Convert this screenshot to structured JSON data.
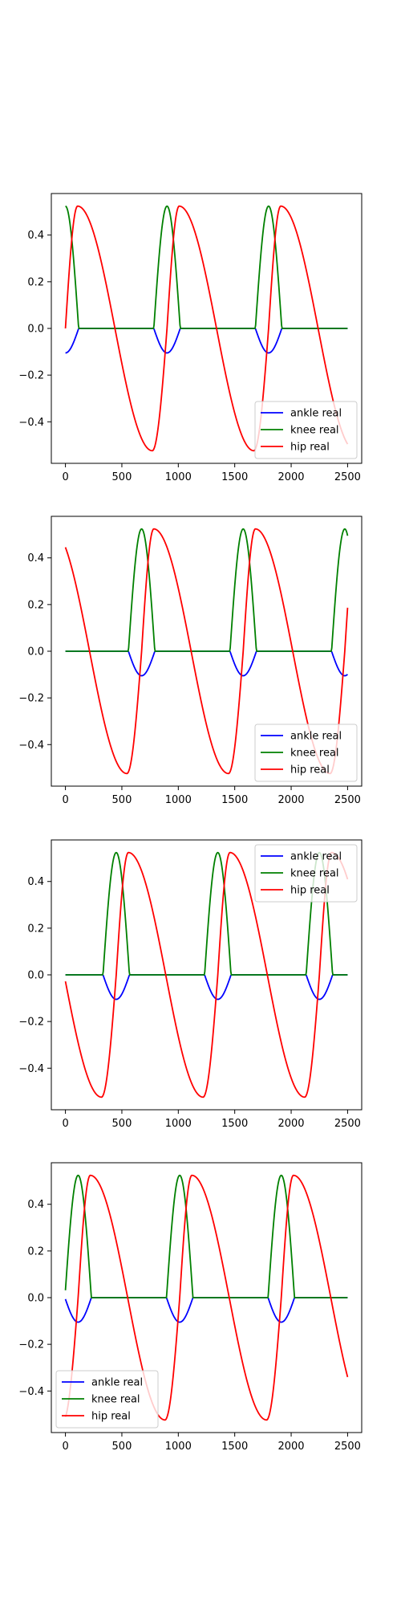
{
  "colors": {
    "ankle": "#0000ff",
    "knee": "#008000",
    "hip": "#ff0000",
    "axes": "#000000",
    "background": "#ffffff"
  },
  "chart_data": [
    {
      "type": "line",
      "x_domain": [
        0,
        2500
      ],
      "xlim": [
        -125,
        2625
      ],
      "ylim": [
        -0.578,
        0.578
      ],
      "x_ticks": [
        0,
        500,
        1000,
        1500,
        2000,
        2500
      ],
      "y_ticks": [
        0.4,
        0.2,
        0.0,
        -0.2,
        -0.4
      ],
      "y_tick_labels": [
        "0.4",
        "0.2",
        "0.0",
        "−0.2",
        "−0.4"
      ],
      "legend_position": "lower right",
      "series": [
        {
          "name": "ankle real",
          "color": "#0000ff",
          "pattern": "ankle",
          "phase": 0.0
        },
        {
          "name": "knee real",
          "color": "#008000",
          "pattern": "knee",
          "phase": 0.0
        },
        {
          "name": "hip real",
          "color": "#ff0000",
          "pattern": "hip",
          "phase": 0.0
        }
      ]
    },
    {
      "type": "line",
      "x_domain": [
        0,
        2500
      ],
      "xlim": [
        -125,
        2625
      ],
      "ylim": [
        -0.578,
        0.578
      ],
      "x_ticks": [
        0,
        500,
        1000,
        1500,
        2000,
        2500
      ],
      "y_ticks": [
        0.4,
        0.2,
        0.0,
        -0.2,
        -0.4
      ],
      "y_tick_labels": [
        "0.4",
        "0.2",
        "0.0",
        "−0.2",
        "−0.4"
      ],
      "legend_position": "lower right",
      "series": [
        {
          "name": "ankle real",
          "color": "#0000ff",
          "pattern": "ankle",
          "phase": 0.25
        },
        {
          "name": "knee real",
          "color": "#008000",
          "pattern": "knee",
          "phase": 0.25
        },
        {
          "name": "hip real",
          "color": "#ff0000",
          "pattern": "hip",
          "phase": 0.25
        }
      ]
    },
    {
      "type": "line",
      "x_domain": [
        0,
        2500
      ],
      "xlim": [
        -125,
        2625
      ],
      "ylim": [
        -0.578,
        0.578
      ],
      "x_ticks": [
        0,
        500,
        1000,
        1500,
        2000,
        2500
      ],
      "y_ticks": [
        0.4,
        0.2,
        0.0,
        -0.2,
        -0.4
      ],
      "y_tick_labels": [
        "0.4",
        "0.2",
        "0.0",
        "−0.2",
        "−0.4"
      ],
      "legend_position": "upper right",
      "series": [
        {
          "name": "ankle real",
          "color": "#0000ff",
          "pattern": "ankle",
          "phase": 0.5
        },
        {
          "name": "knee real",
          "color": "#008000",
          "pattern": "knee",
          "phase": 0.5
        },
        {
          "name": "hip real",
          "color": "#ff0000",
          "pattern": "hip",
          "phase": 0.5
        }
      ]
    },
    {
      "type": "line",
      "x_domain": [
        0,
        2500
      ],
      "xlim": [
        -125,
        2625
      ],
      "ylim": [
        -0.578,
        0.578
      ],
      "x_ticks": [
        0,
        500,
        1000,
        1500,
        2000,
        2500
      ],
      "y_ticks": [
        0.4,
        0.2,
        0.0,
        -0.2,
        -0.4
      ],
      "y_tick_labels": [
        "0.4",
        "0.2",
        "0.0",
        "−0.2",
        "−0.4"
      ],
      "legend_position": "lower left",
      "series": [
        {
          "name": "ankle real",
          "color": "#0000ff",
          "pattern": "ankle",
          "phase": 0.875
        },
        {
          "name": "knee real",
          "color": "#008000",
          "pattern": "knee",
          "phase": 0.875
        },
        {
          "name": "hip real",
          "color": "#ff0000",
          "pattern": "hip",
          "phase": 0.875
        }
      ]
    }
  ],
  "gait": {
    "period": 900,
    "amplitude": 0.524,
    "ankle_amplitude": 0.105,
    "knee_start": 0.87,
    "knee_end": 1.13,
    "hip_peak_offset": 0.12,
    "hip_trough_offset": 0.855,
    "sample_step": 5
  }
}
